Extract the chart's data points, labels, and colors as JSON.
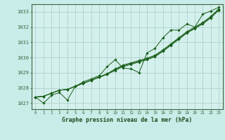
{
  "title": "Graphe pression niveau de la mer (hPa)",
  "xlabel": "Graphe pression niveau de la mer (hPa)",
  "bg_color": "#c8ece8",
  "plot_bg": "#d4f0ec",
  "line_color": "#1a5e1a",
  "grid_color": "#a8ccc8",
  "x": [
    0,
    1,
    2,
    3,
    4,
    5,
    6,
    7,
    8,
    9,
    10,
    11,
    12,
    13,
    14,
    15,
    16,
    17,
    18,
    19,
    20,
    21,
    22,
    23
  ],
  "line_smooth1": [
    1027.4,
    1027.45,
    1027.65,
    1027.85,
    1027.9,
    1028.1,
    1028.3,
    1028.5,
    1028.7,
    1028.9,
    1029.15,
    1029.4,
    1029.55,
    1029.7,
    1029.85,
    1030.05,
    1030.4,
    1030.8,
    1031.2,
    1031.6,
    1031.9,
    1032.2,
    1032.6,
    1033.1
  ],
  "line_smooth2": [
    1027.4,
    1027.45,
    1027.65,
    1027.85,
    1027.9,
    1028.1,
    1028.3,
    1028.5,
    1028.7,
    1028.9,
    1029.2,
    1029.45,
    1029.6,
    1029.75,
    1029.9,
    1030.1,
    1030.45,
    1030.85,
    1031.25,
    1031.65,
    1031.95,
    1032.25,
    1032.65,
    1033.15
  ],
  "line_smooth3": [
    1027.4,
    1027.45,
    1027.65,
    1027.85,
    1027.9,
    1028.12,
    1028.32,
    1028.52,
    1028.73,
    1028.93,
    1029.25,
    1029.5,
    1029.65,
    1029.8,
    1029.95,
    1030.15,
    1030.5,
    1030.9,
    1031.3,
    1031.7,
    1032.0,
    1032.3,
    1032.7,
    1033.2
  ],
  "line_wiggly": [
    1027.4,
    1027.0,
    1027.5,
    1027.7,
    1027.2,
    1028.1,
    1028.4,
    1028.6,
    1028.8,
    1029.4,
    1029.85,
    1029.3,
    1029.25,
    1029.0,
    1030.3,
    1030.6,
    1031.3,
    1031.8,
    1031.8,
    1032.2,
    1032.0,
    1032.85,
    1033.05,
    1033.3
  ],
  "ylim": [
    1026.6,
    1033.5
  ],
  "yticks": [
    1027,
    1028,
    1029,
    1030,
    1031,
    1032,
    1033
  ],
  "xticks": [
    0,
    1,
    2,
    3,
    4,
    5,
    6,
    7,
    8,
    9,
    10,
    11,
    12,
    13,
    14,
    15,
    16,
    17,
    18,
    19,
    20,
    21,
    22,
    23
  ],
  "figsize": [
    3.2,
    2.0
  ],
  "dpi": 100
}
